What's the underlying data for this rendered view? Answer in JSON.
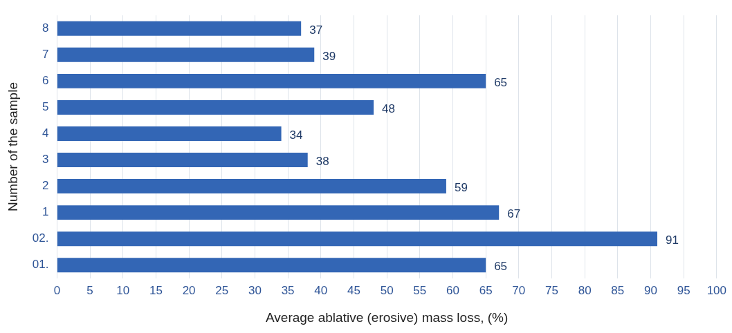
{
  "chart_data": {
    "type": "bar",
    "orientation": "horizontal",
    "xlabel": "Average ablative (erosive) mass loss, (%)",
    "ylabel": "Number of the sample",
    "categories": [
      "8",
      "7",
      "6",
      "5",
      "4",
      "3",
      "2",
      "1",
      "02.",
      "01."
    ],
    "values": [
      37,
      39,
      65,
      48,
      34,
      38,
      59,
      67,
      91,
      65
    ],
    "color": "#3366b5",
    "xlim": [
      0,
      100
    ],
    "xticks": [
      0,
      5,
      10,
      15,
      20,
      25,
      30,
      35,
      40,
      45,
      50,
      55,
      60,
      65,
      70,
      75,
      80,
      85,
      90,
      95,
      100
    ],
    "grid": "x",
    "data_labels": true,
    "legend": false
  }
}
